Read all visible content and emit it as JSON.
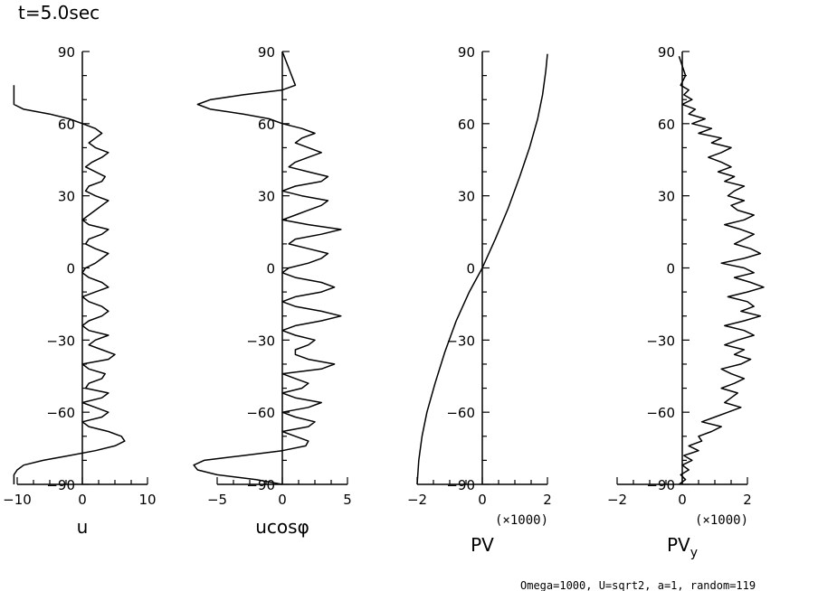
{
  "title": "t=5.0sec",
  "footer": "Omega=1000, U=sqrt2, a=1, random=119",
  "chart_data": [
    {
      "type": "line",
      "xlabel": "u",
      "xscale_label": "",
      "ylabel": "",
      "xticks": [
        -10,
        0,
        10
      ],
      "xlim": [
        -10,
        10
      ],
      "ylim": [
        -90,
        90
      ],
      "yticks": [
        90,
        60,
        30,
        0,
        -30,
        -60,
        -90
      ],
      "series": [
        {
          "x": [
            -10.5,
            -10.5,
            -10.5,
            -10,
            -9,
            -6,
            -2,
            2,
            5,
            6.5,
            6,
            4,
            1,
            0,
            3,
            4,
            2,
            0,
            3,
            4,
            0.5,
            1,
            3,
            3.5,
            1,
            0,
            4,
            5,
            3,
            1,
            2,
            4,
            1,
            0,
            1,
            3,
            4,
            3,
            1,
            0,
            2,
            4,
            3,
            1,
            0,
            0.5,
            2,
            3,
            4,
            2,
            0.5,
            1,
            3,
            4,
            1,
            0,
            1,
            2,
            3,
            4,
            2,
            0.5,
            1,
            3,
            3.5,
            2,
            0.5,
            1.5,
            3,
            4,
            2,
            1,
            2,
            3,
            2,
            0,
            -2,
            -5,
            -9,
            -10.5,
            -10.5,
            -10.5,
            -10.5,
            -10.5
          ],
          "y": [
            -90,
            -88,
            -86,
            -84,
            -82,
            -80,
            -78,
            -76,
            -74,
            -72,
            -70,
            -68,
            -66,
            -64,
            -62,
            -60,
            -58,
            -56,
            -54,
            -52,
            -50,
            -48,
            -46,
            -44,
            -42,
            -40,
            -38,
            -36,
            -34,
            -32,
            -30,
            -28,
            -26,
            -24,
            -22,
            -20,
            -18,
            -16,
            -14,
            -12,
            -10,
            -8,
            -6,
            -4,
            -2,
            0,
            2,
            4,
            6,
            8,
            10,
            12,
            14,
            16,
            18,
            20,
            22,
            24,
            26,
            28,
            30,
            32,
            34,
            36,
            38,
            40,
            42,
            44,
            46,
            48,
            50,
            52,
            54,
            56,
            58,
            60,
            62,
            64,
            66,
            68,
            70,
            72,
            74,
            76
          ]
        }
      ]
    },
    {
      "type": "line",
      "xlabel": "ucosφ",
      "xscale_label": "",
      "ylabel": "",
      "xticks": [
        -5,
        0,
        5
      ],
      "xlim": [
        -5,
        5
      ],
      "ylim": [
        -90,
        90
      ],
      "yticks": [
        90,
        60,
        30,
        0,
        -30,
        -60,
        -90
      ],
      "series": [
        {
          "x": [
            0,
            -2,
            -5,
            -6.5,
            -6.8,
            -6,
            -3,
            0,
            1.8,
            2,
            1,
            0,
            2,
            2.5,
            1,
            0,
            2,
            3,
            1,
            0,
            1.5,
            2,
            1,
            0,
            3,
            4,
            2,
            1,
            1,
            2,
            2.5,
            1,
            0,
            1,
            3,
            4.5,
            3,
            1,
            0,
            1,
            3,
            4,
            3,
            1,
            0,
            0.5,
            2,
            3,
            3.5,
            2,
            0.5,
            1,
            3,
            4.5,
            2,
            0,
            1,
            2,
            3,
            3.5,
            1.5,
            0,
            1,
            3,
            3.5,
            2,
            0.5,
            1,
            2,
            3,
            2,
            1,
            1.5,
            2.5,
            1.5,
            0,
            -1,
            -3,
            -5.5,
            -6.5,
            -5.5,
            -3,
            0,
            1,
            0
          ],
          "y": [
            -90,
            -88,
            -86,
            -84,
            -82,
            -80,
            -78,
            -76,
            -74,
            -72,
            -70,
            -68,
            -66,
            -64,
            -62,
            -60,
            -58,
            -56,
            -54,
            -52,
            -50,
            -48,
            -46,
            -44,
            -42,
            -40,
            -38,
            -36,
            -34,
            -32,
            -30,
            -28,
            -26,
            -24,
            -22,
            -20,
            -18,
            -16,
            -14,
            -12,
            -10,
            -8,
            -6,
            -4,
            -2,
            0,
            2,
            4,
            6,
            8,
            10,
            12,
            14,
            16,
            18,
            20,
            22,
            24,
            26,
            28,
            30,
            32,
            34,
            36,
            38,
            40,
            42,
            44,
            46,
            48,
            50,
            52,
            54,
            56,
            58,
            60,
            62,
            64,
            66,
            68,
            70,
            72,
            74,
            76,
            90
          ]
        }
      ]
    },
    {
      "type": "line",
      "xlabel": "PV",
      "xscale_label": "(×1000)",
      "ylabel": "",
      "xticks": [
        -2,
        0,
        2
      ],
      "xlim": [
        -2,
        2
      ],
      "ylim": [
        -90,
        90
      ],
      "yticks": [
        90,
        60,
        30,
        0,
        -30,
        -60,
        -90
      ],
      "series": [
        {
          "x": [
            -2,
            -1.95,
            -1.85,
            -1.7,
            -1.45,
            -1.15,
            -0.8,
            -0.4,
            0,
            0.4,
            0.8,
            1.15,
            1.45,
            1.7,
            1.85,
            1.95,
            2
          ],
          "y": [
            -90,
            -80,
            -70,
            -60,
            -48,
            -35,
            -22,
            -10,
            0,
            12,
            25,
            38,
            50,
            62,
            72,
            82,
            89
          ]
        }
      ]
    },
    {
      "type": "line",
      "xlabel": "PV",
      "xlabel_sub": "y",
      "xscale_label": "(×1000)",
      "ylabel": "",
      "xticks": [
        -2,
        0,
        2
      ],
      "xlim": [
        -2,
        2
      ],
      "ylim": [
        -90,
        90
      ],
      "yticks": [
        90,
        60,
        30,
        0,
        -30,
        -60,
        -90
      ],
      "series": [
        {
          "x": [
            -0.1,
            0.1,
            -0.05,
            0.2,
            0,
            0.3,
            0.05,
            0.5,
            0.2,
            0.6,
            0.5,
            0.9,
            1.2,
            0.6,
            1,
            1.4,
            1.8,
            1.3,
            1.5,
            1.7,
            1.2,
            1.6,
            1.9,
            1.5,
            1.2,
            1.8,
            2.1,
            1.6,
            1.9,
            1.3,
            1.7,
            2.2,
            1.9,
            1.3,
            1.9,
            2.4,
            1.8,
            2.2,
            2,
            1.4,
            2,
            2.5,
            2.1,
            1.6,
            2.2,
            1.9,
            1.2,
            1.9,
            2.4,
            2.1,
            1.6,
            1.9,
            2.2,
            1.8,
            1.3,
            1.9,
            2.2,
            1.7,
            1.5,
            1.9,
            1.4,
            1.6,
            1.9,
            1.3,
            1.6,
            1.1,
            1.5,
            1.2,
            0.8,
            1.2,
            1.5,
            0.9,
            1.2,
            0.5,
            0.9,
            0.3,
            0.7,
            0.2,
            0.4,
            0,
            0.3,
            0.05,
            0.2,
            -0.05,
            0.1,
            -0.1
          ],
          "y": [
            -90,
            -88,
            -86,
            -84,
            -82,
            -80,
            -78,
            -76,
            -74,
            -72,
            -70,
            -68,
            -66,
            -64,
            -62,
            -60,
            -58,
            -56,
            -54,
            -52,
            -50,
            -48,
            -46,
            -44,
            -42,
            -40,
            -38,
            -36,
            -34,
            -32,
            -30,
            -28,
            -26,
            -24,
            -22,
            -20,
            -18,
            -16,
            -14,
            -12,
            -10,
            -8,
            -6,
            -4,
            -2,
            0,
            2,
            4,
            6,
            8,
            10,
            12,
            14,
            16,
            18,
            20,
            22,
            24,
            26,
            28,
            30,
            32,
            34,
            36,
            38,
            40,
            42,
            44,
            46,
            48,
            50,
            52,
            54,
            56,
            58,
            60,
            62,
            64,
            66,
            68,
            70,
            72,
            74,
            76,
            80,
            88
          ]
        }
      ]
    }
  ]
}
